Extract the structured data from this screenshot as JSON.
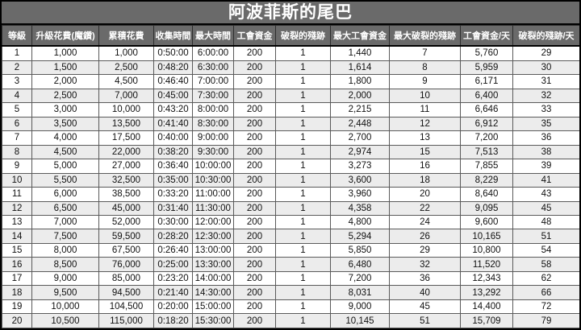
{
  "title": "阿波菲斯的尾巴",
  "colors": {
    "header_bg": "#6a6a6a",
    "header_text": "#ffffff",
    "row_bg": "#ffffff",
    "row_alt_bg": "#ececec",
    "grid_border": "#000000",
    "text": "#111111"
  },
  "table": {
    "headers": [
      "等級",
      "升級花費(魔鑽)",
      "累積花費",
      "收集時間",
      "最大時間",
      "工會資金",
      "破裂的殘跡",
      "最大工會資金",
      "最大破裂的殘跡",
      "工會資金/天",
      "破裂的殘跡/天"
    ],
    "rows": [
      [
        "1",
        "1,000",
        "1,000",
        "0:50:00",
        "6:00:00",
        "200",
        "1",
        "1,440",
        "7",
        "5,760",
        "29"
      ],
      [
        "2",
        "1,500",
        "2,500",
        "0:48:20",
        "6:30:00",
        "200",
        "1",
        "1,614",
        "8",
        "5,959",
        "30"
      ],
      [
        "3",
        "2,000",
        "4,500",
        "0:46:40",
        "7:00:00",
        "200",
        "1",
        "1,800",
        "9",
        "6,171",
        "31"
      ],
      [
        "4",
        "2,500",
        "7,000",
        "0:45:00",
        "7:30:00",
        "200",
        "1",
        "2,000",
        "10",
        "6,400",
        "32"
      ],
      [
        "5",
        "3,000",
        "10,000",
        "0:43:20",
        "8:00:00",
        "200",
        "1",
        "2,215",
        "11",
        "6,646",
        "33"
      ],
      [
        "6",
        "3,500",
        "13,500",
        "0:41:40",
        "8:30:00",
        "200",
        "1",
        "2,448",
        "12",
        "6,912",
        "35"
      ],
      [
        "7",
        "4,000",
        "17,500",
        "0:40:00",
        "9:00:00",
        "200",
        "1",
        "2,700",
        "13",
        "7,200",
        "36"
      ],
      [
        "8",
        "4,500",
        "22,000",
        "0:38:20",
        "9:30:00",
        "200",
        "1",
        "2,974",
        "15",
        "7,513",
        "38"
      ],
      [
        "9",
        "5,000",
        "27,000",
        "0:36:40",
        "10:00:00",
        "200",
        "1",
        "3,273",
        "16",
        "7,855",
        "39"
      ],
      [
        "10",
        "5,500",
        "32,500",
        "0:35:00",
        "10:30:00",
        "200",
        "1",
        "3,600",
        "18",
        "8,229",
        "41"
      ],
      [
        "11",
        "6,000",
        "38,500",
        "0:33:20",
        "11:00:00",
        "200",
        "1",
        "3,960",
        "20",
        "8,640",
        "43"
      ],
      [
        "12",
        "6,500",
        "45,000",
        "0:31:40",
        "11:30:00",
        "200",
        "1",
        "4,358",
        "22",
        "9,095",
        "45"
      ],
      [
        "13",
        "7,000",
        "52,000",
        "0:30:00",
        "12:00:00",
        "200",
        "1",
        "4,800",
        "24",
        "9,600",
        "48"
      ],
      [
        "14",
        "7,500",
        "59,500",
        "0:28:20",
        "12:30:00",
        "200",
        "1",
        "5,294",
        "26",
        "10,165",
        "51"
      ],
      [
        "15",
        "8,000",
        "67,500",
        "0:26:40",
        "13:00:00",
        "200",
        "1",
        "5,850",
        "29",
        "10,800",
        "54"
      ],
      [
        "16",
        "8,500",
        "76,000",
        "0:25:00",
        "13:30:00",
        "200",
        "1",
        "6,480",
        "32",
        "11,520",
        "58"
      ],
      [
        "17",
        "9,000",
        "85,000",
        "0:23:20",
        "14:00:00",
        "200",
        "1",
        "7,200",
        "36",
        "12,343",
        "62"
      ],
      [
        "18",
        "9,500",
        "94,500",
        "0:21:40",
        "14:30:00",
        "200",
        "1",
        "8,031",
        "40",
        "13,292",
        "66"
      ],
      [
        "19",
        "10,000",
        "104,500",
        "0:20:00",
        "15:00:00",
        "200",
        "1",
        "9,000",
        "45",
        "14,400",
        "72"
      ],
      [
        "20",
        "10,500",
        "115,000",
        "0:18:20",
        "15:30:00",
        "200",
        "1",
        "10,145",
        "51",
        "15,709",
        "79"
      ]
    ]
  }
}
